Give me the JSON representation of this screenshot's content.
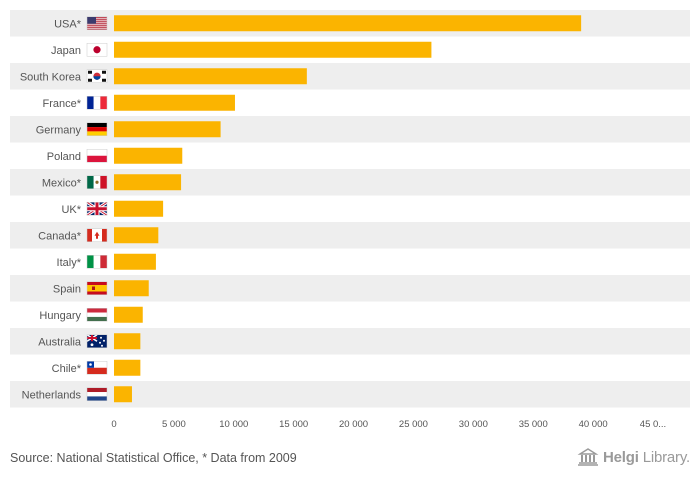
{
  "chart_data": {
    "type": "bar",
    "orientation": "horizontal",
    "categories": [
      "USA*",
      "Japan",
      "South Korea",
      "France*",
      "Germany",
      "Poland",
      "Mexico*",
      "UK*",
      "Canada*",
      "Italy*",
      "Spain",
      "Hungary",
      "Australia",
      "Chile*",
      "Netherlands"
    ],
    "values": [
      39000,
      26500,
      16100,
      10100,
      8900,
      5700,
      5600,
      4100,
      3700,
      3500,
      2900,
      2400,
      2200,
      2200,
      1500
    ],
    "xlim": [
      0,
      45000
    ],
    "x_ticks": [
      0,
      5000,
      10000,
      15000,
      20000,
      25000,
      30000,
      35000,
      40000,
      45000
    ],
    "x_tick_labels": [
      "0",
      "5 000",
      "10 000",
      "15 000",
      "20 000",
      "25 000",
      "30 000",
      "35 000",
      "40 000",
      "45 0..."
    ],
    "bar_color": "#fbb400",
    "stripe_color": "#eeeeee",
    "title": "",
    "xlabel": "",
    "ylabel": ""
  },
  "footer": {
    "source": "Source: National Statistical Office, * Data from 2009",
    "brand_part1": "Helgi",
    "brand_part2": "Library."
  },
  "flags": [
    "us",
    "jp",
    "kr",
    "fr",
    "de",
    "pl",
    "mx",
    "gb",
    "ca",
    "it",
    "es",
    "hu",
    "au",
    "cl",
    "nl"
  ]
}
